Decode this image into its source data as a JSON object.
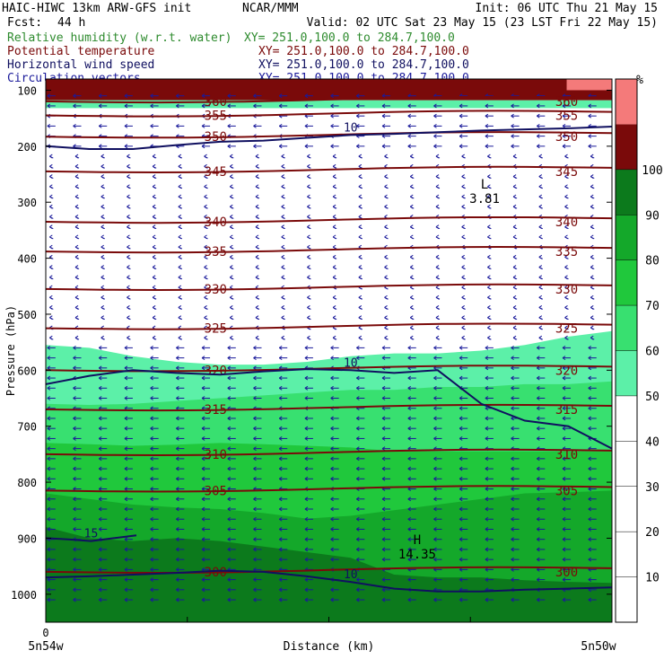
{
  "header": {
    "model": "HAIC-HIWC 13km ARW-GFS init",
    "org": "NCAR/MMM",
    "init": "Init: 06 UTC Thu 21 May 15",
    "fcst_label": "Fcst:",
    "fcst_value": "44 h",
    "valid": "Valid: 02 UTC Sat 23 May 15 (23 LST Fri 22 May 15)",
    "fields": [
      {
        "name": "Relative humidity (w.r.t. water)",
        "xy": "XY= 251.0,100.0 to 284.7,100.0",
        "color": "#2e8b2e"
      },
      {
        "name": "Potential temperature",
        "xy": "XY= 251.0,100.0 to 284.7,100.0",
        "color": "#7a0a0a"
      },
      {
        "name": "Horizontal wind speed",
        "xy": "XY= 251.0,100.0 to 284.7,100.0",
        "color": "#101060"
      },
      {
        "name": "Circulation vectors",
        "xy": "XY= 251.0,100.0 to 284.7,100.0",
        "color": "#1a1a9a"
      }
    ]
  },
  "chart_data": {
    "type": "cross-section",
    "xlabel": "Distance (km)",
    "ylabel": "Pressure (hPa)",
    "x_tick_label": "0",
    "x_left_label": "5n54w",
    "x_right_label": "5n50w",
    "y_ticks": [
      100,
      200,
      300,
      400,
      500,
      600,
      700,
      800,
      900,
      1000
    ],
    "y_scale": "linear",
    "ylim": [
      1050,
      80
    ],
    "colorbar": {
      "unit": "%",
      "ticks": [
        10,
        20,
        30,
        40,
        50,
        60,
        70,
        80,
        90,
        100
      ],
      "bands": [
        {
          "from": 50,
          "to": 60,
          "color": "#5cf0a8"
        },
        {
          "from": 60,
          "to": 70,
          "color": "#38e070"
        },
        {
          "from": 70,
          "to": 80,
          "color": "#20c83c"
        },
        {
          "from": 80,
          "to": 90,
          "color": "#14a82a"
        },
        {
          "from": 90,
          "to": 100,
          "color": "#0c7a1c"
        },
        {
          "from": 100,
          "to": 110,
          "color": "#7a0a0a"
        },
        {
          "from": 110,
          "to": 120,
          "color": "#f47a7a"
        }
      ]
    },
    "rh_fill_fronts": [
      {
        "level": 50,
        "pressure": [
          555,
          560,
          575,
          585,
          590,
          590,
          585,
          575,
          570,
          570,
          565,
          555,
          540,
          530
        ]
      },
      {
        "level": 60,
        "pressure": [
          660,
          662,
          660,
          655,
          650,
          645,
          640,
          635,
          635,
          630,
          630,
          625,
          625,
          620
        ]
      },
      {
        "level": 70,
        "pressure": [
          730,
          732,
          735,
          733,
          730,
          732,
          735,
          738,
          745,
          745,
          745,
          745,
          745,
          745
        ]
      },
      {
        "level": 80,
        "pressure": [
          820,
          830,
          840,
          845,
          848,
          855,
          865,
          860,
          850,
          840,
          830,
          820,
          818,
          815
        ]
      },
      {
        "level": 90,
        "pressure": [
          880,
          900,
          905,
          900,
          905,
          915,
          925,
          935,
          965,
          970,
          970,
          975,
          978,
          980
        ]
      }
    ],
    "theta_labels": [
      "305",
      "300",
      "310",
      "315",
      "320",
      "325",
      "330",
      "335",
      "340",
      "345",
      "350",
      "355",
      "360"
    ],
    "theta_contours": [
      {
        "value": 300,
        "pressure": 960
      },
      {
        "value": 305,
        "pressure": 815
      },
      {
        "value": 310,
        "pressure": 750
      },
      {
        "value": 315,
        "pressure": 670
      },
      {
        "value": 320,
        "pressure": 600
      },
      {
        "value": 325,
        "pressure": 525
      },
      {
        "value": 330,
        "pressure": 455
      },
      {
        "value": 335,
        "pressure": 388
      },
      {
        "value": 340,
        "pressure": 335
      },
      {
        "value": 345,
        "pressure": 245
      },
      {
        "value": 350,
        "pressure": 183
      },
      {
        "value": 355,
        "pressure": 145
      },
      {
        "value": 360,
        "pressure": 120
      }
    ],
    "wind_speed_labels": [
      "10",
      "15"
    ],
    "wind_contours": [
      {
        "value": 10,
        "pressure": [
          625,
          610,
          600,
          605,
          608,
          602,
          598,
          600,
          605,
          600,
          660,
          690,
          700,
          740
        ]
      },
      {
        "value": 10,
        "pressure": [
          970,
          968,
          965,
          962,
          958,
          960,
          968,
          978,
          990,
          995,
          995,
          992,
          990,
          988
        ]
      },
      {
        "value": 15,
        "pressure": [
          900,
          902,
          905,
          900,
          895
        ]
      },
      {
        "value": 10,
        "pressure": [
          200,
          205,
          205,
          198,
          192,
          190,
          185,
          180,
          178,
          175,
          172,
          170,
          168,
          165
        ]
      }
    ],
    "markers": [
      {
        "symbol": "L",
        "value": "3.81",
        "x_fraction": 0.775,
        "pressure": 285
      },
      {
        "symbol": "H",
        "value": "14.35",
        "x_fraction": 0.656,
        "pressure": 920
      }
    ]
  }
}
